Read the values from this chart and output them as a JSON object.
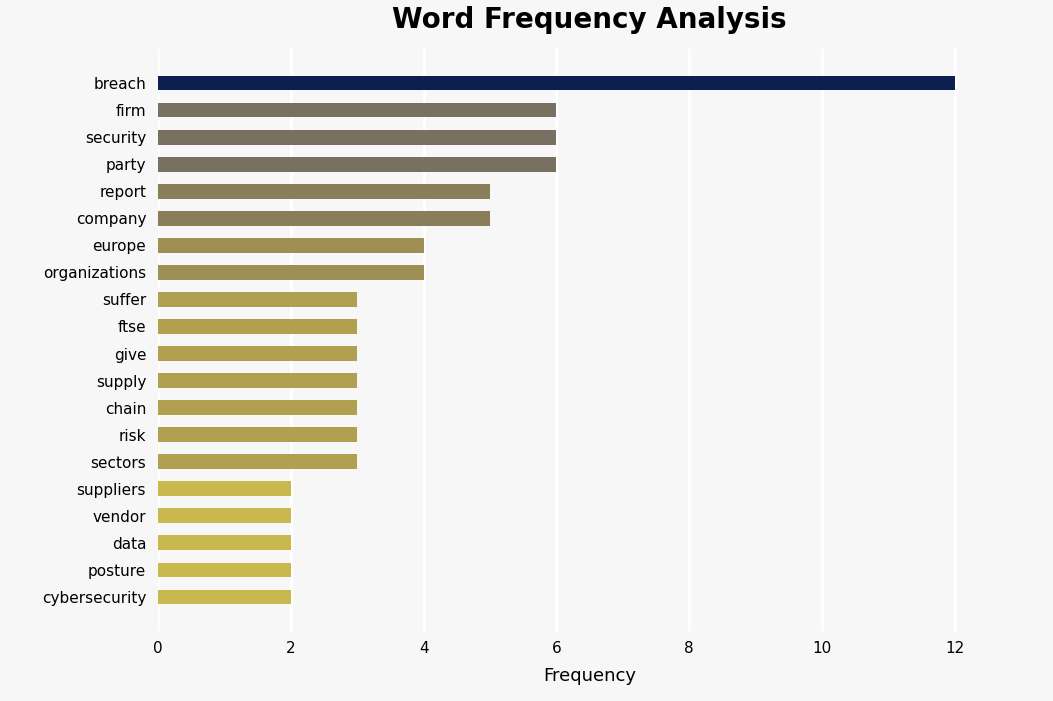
{
  "title": "Word Frequency Analysis",
  "xlabel": "Frequency",
  "categories": [
    "cybersecurity",
    "posture",
    "data",
    "vendor",
    "suppliers",
    "sectors",
    "risk",
    "chain",
    "supply",
    "give",
    "ftse",
    "suffer",
    "organizations",
    "europe",
    "company",
    "report",
    "party",
    "security",
    "firm",
    "breach"
  ],
  "values": [
    2,
    2,
    2,
    2,
    2,
    3,
    3,
    3,
    3,
    3,
    3,
    3,
    4,
    4,
    5,
    5,
    6,
    6,
    6,
    12
  ],
  "bar_colors": [
    "#c8b84e",
    "#c8b84e",
    "#c8b84e",
    "#c8b84e",
    "#c8b84e",
    "#b0a050",
    "#b0a050",
    "#b0a050",
    "#b0a050",
    "#b0a050",
    "#b0a050",
    "#b0a050",
    "#9e9055",
    "#9e9055",
    "#8a7d5a",
    "#8a7d5a",
    "#787060",
    "#787060",
    "#787060",
    "#0d1f4e"
  ],
  "background_color": "#f7f7f7",
  "title_fontsize": 20,
  "xlabel_fontsize": 13,
  "xlim": [
    0,
    13
  ],
  "xticks": [
    0,
    2,
    4,
    6,
    8,
    10,
    12
  ]
}
